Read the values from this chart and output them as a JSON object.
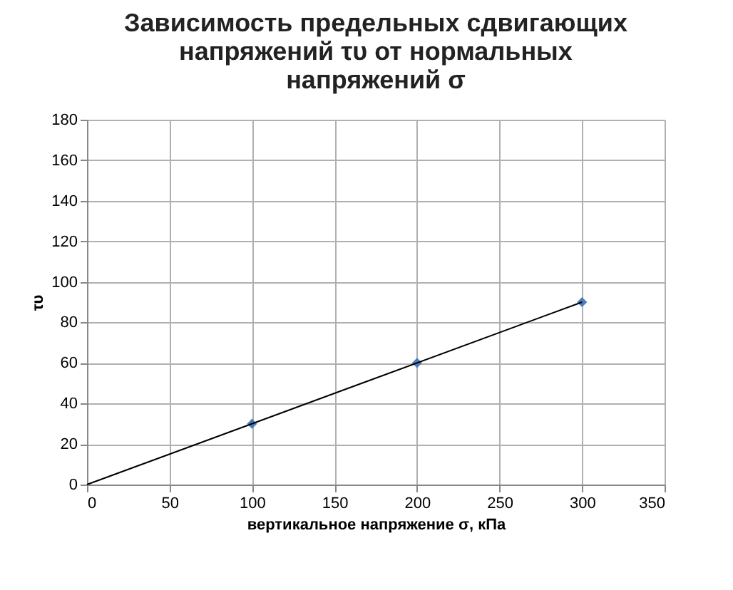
{
  "chart_data": {
    "type": "scatter",
    "title": "Зависимость предельных сдвигающих напряжений τυ от нормальных напряжений σ",
    "xlabel": "вертикальное напряжение σ, кПа",
    "ylabel": "τυ",
    "x": [
      100,
      200,
      300
    ],
    "series": [
      {
        "color": "#4a7ebb",
        "marker": "diamond",
        "values": [
          30,
          60,
          90
        ]
      },
      {
        "type": "line",
        "x": [
          0,
          300
        ],
        "color": "#000000",
        "marker": "none",
        "values": [
          0,
          90
        ]
      }
    ],
    "xlim": [
      0,
      350
    ],
    "xticks": [
      0,
      50,
      100,
      150,
      200,
      250,
      300,
      350
    ],
    "ylim": [
      0,
      180
    ],
    "yticks": [
      0,
      20,
      40,
      60,
      80,
      100,
      120,
      140,
      160,
      180
    ],
    "grid": true
  }
}
